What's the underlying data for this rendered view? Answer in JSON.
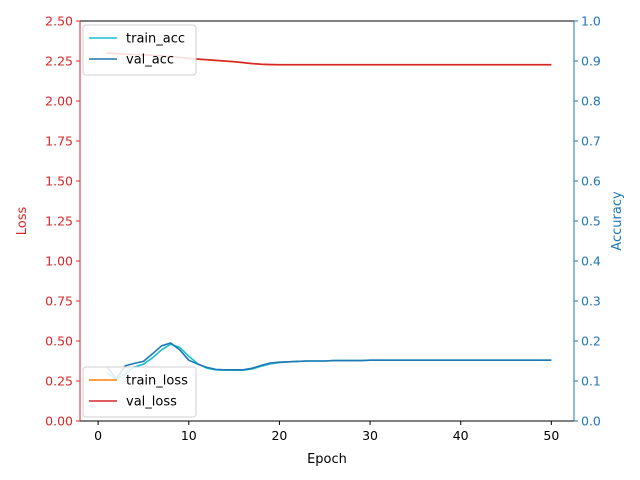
{
  "chart_data": {
    "type": "line",
    "title": "",
    "xlabel": "Epoch",
    "ylabel_left": "Loss",
    "ylabel_right": "Accuracy",
    "xlim": [
      -2,
      52.5
    ],
    "ylim_left": [
      0,
      2.5
    ],
    "ylim_right": [
      0,
      1.0
    ],
    "x_ticks": [
      "0",
      "10",
      "20",
      "30",
      "40",
      "50"
    ],
    "x_tick_values": [
      0,
      10,
      20,
      30,
      40,
      50
    ],
    "y_left_ticks": [
      "0.00",
      "0.25",
      "0.50",
      "0.75",
      "1.00",
      "1.25",
      "1.50",
      "1.75",
      "2.00",
      "2.25",
      "2.50"
    ],
    "y_left_tick_values": [
      0,
      0.25,
      0.5,
      0.75,
      1.0,
      1.25,
      1.5,
      1.75,
      2.0,
      2.25,
      2.5
    ],
    "y_right_ticks": [
      "0.0",
      "0.1",
      "0.2",
      "0.3",
      "0.4",
      "0.5",
      "0.6",
      "0.7",
      "0.8",
      "0.9",
      "1.0"
    ],
    "y_right_tick_values": [
      0,
      0.1,
      0.2,
      0.3,
      0.4,
      0.5,
      0.6,
      0.7,
      0.8,
      0.9,
      1.0
    ],
    "grid": false,
    "left_axis_color": "#d62728",
    "right_axis_color": "#1f77b4",
    "x": [
      1,
      2,
      3,
      4,
      5,
      6,
      7,
      8,
      9,
      10,
      11,
      12,
      13,
      14,
      15,
      16,
      17,
      18,
      19,
      20,
      21,
      22,
      23,
      24,
      25,
      26,
      27,
      28,
      29,
      30,
      31,
      32,
      33,
      34,
      35,
      36,
      37,
      38,
      39,
      40,
      41,
      42,
      43,
      44,
      45,
      46,
      47,
      48,
      49,
      50
    ],
    "loss_series": [
      {
        "name": "train_loss",
        "axis": "left",
        "color": "#ff7f0e",
        "values": [
          2.298,
          2.295,
          2.292,
          2.29,
          2.288,
          2.285,
          2.281,
          2.277,
          2.272,
          2.266,
          2.261,
          2.257,
          2.253,
          2.249,
          2.245,
          2.239,
          2.233,
          2.229,
          2.227,
          2.226,
          2.226,
          2.226,
          2.226,
          2.226,
          2.226,
          2.226,
          2.226,
          2.226,
          2.226,
          2.226,
          2.226,
          2.226,
          2.226,
          2.226,
          2.226,
          2.226,
          2.226,
          2.226,
          2.226,
          2.226,
          2.226,
          2.226,
          2.226,
          2.226,
          2.226,
          2.226,
          2.226,
          2.226,
          2.226,
          2.226
        ]
      },
      {
        "name": "val_loss",
        "axis": "left",
        "color": "#d62728",
        "values": [
          2.3,
          2.297,
          2.294,
          2.291,
          2.289,
          2.286,
          2.282,
          2.278,
          2.273,
          2.267,
          2.262,
          2.258,
          2.254,
          2.25,
          2.246,
          2.24,
          2.234,
          2.23,
          2.228,
          2.227,
          2.227,
          2.227,
          2.227,
          2.227,
          2.227,
          2.227,
          2.227,
          2.227,
          2.227,
          2.227,
          2.227,
          2.227,
          2.227,
          2.227,
          2.227,
          2.227,
          2.227,
          2.227,
          2.227,
          2.227,
          2.227,
          2.227,
          2.227,
          2.227,
          2.227,
          2.227,
          2.227,
          2.227,
          2.227,
          2.227
        ]
      }
    ],
    "acc_series": [
      {
        "name": "train_acc",
        "axis": "right",
        "color": "#17becf",
        "values": [
          0.12,
          0.105,
          0.118,
          0.135,
          0.142,
          0.158,
          0.178,
          0.192,
          0.184,
          0.162,
          0.143,
          0.132,
          0.128,
          0.127,
          0.127,
          0.127,
          0.13,
          0.137,
          0.143,
          0.146,
          0.148,
          0.149,
          0.15,
          0.15,
          0.15,
          0.151,
          0.151,
          0.151,
          0.151,
          0.152,
          0.152,
          0.152,
          0.152,
          0.152,
          0.152,
          0.152,
          0.152,
          0.152,
          0.152,
          0.152,
          0.152,
          0.152,
          0.152,
          0.152,
          0.152,
          0.152,
          0.152,
          0.152,
          0.152,
          0.152
        ]
      },
      {
        "name": "val_acc",
        "axis": "right",
        "color": "#1f77b4",
        "values": [
          0.135,
          0.105,
          0.138,
          0.144,
          0.149,
          0.168,
          0.188,
          0.195,
          0.178,
          0.152,
          0.142,
          0.134,
          0.129,
          0.128,
          0.128,
          0.128,
          0.132,
          0.139,
          0.145,
          0.147,
          0.148,
          0.149,
          0.15,
          0.15,
          0.15,
          0.151,
          0.151,
          0.151,
          0.151,
          0.152,
          0.152,
          0.152,
          0.152,
          0.152,
          0.152,
          0.152,
          0.152,
          0.152,
          0.152,
          0.152,
          0.152,
          0.152,
          0.152,
          0.152,
          0.152,
          0.152,
          0.152,
          0.152,
          0.152,
          0.152
        ]
      }
    ],
    "legends": [
      {
        "placement": "upper-left",
        "entries": [
          "train_acc",
          "val_acc"
        ]
      },
      {
        "placement": "lower-left",
        "entries": [
          "train_loss",
          "val_loss"
        ]
      }
    ]
  }
}
